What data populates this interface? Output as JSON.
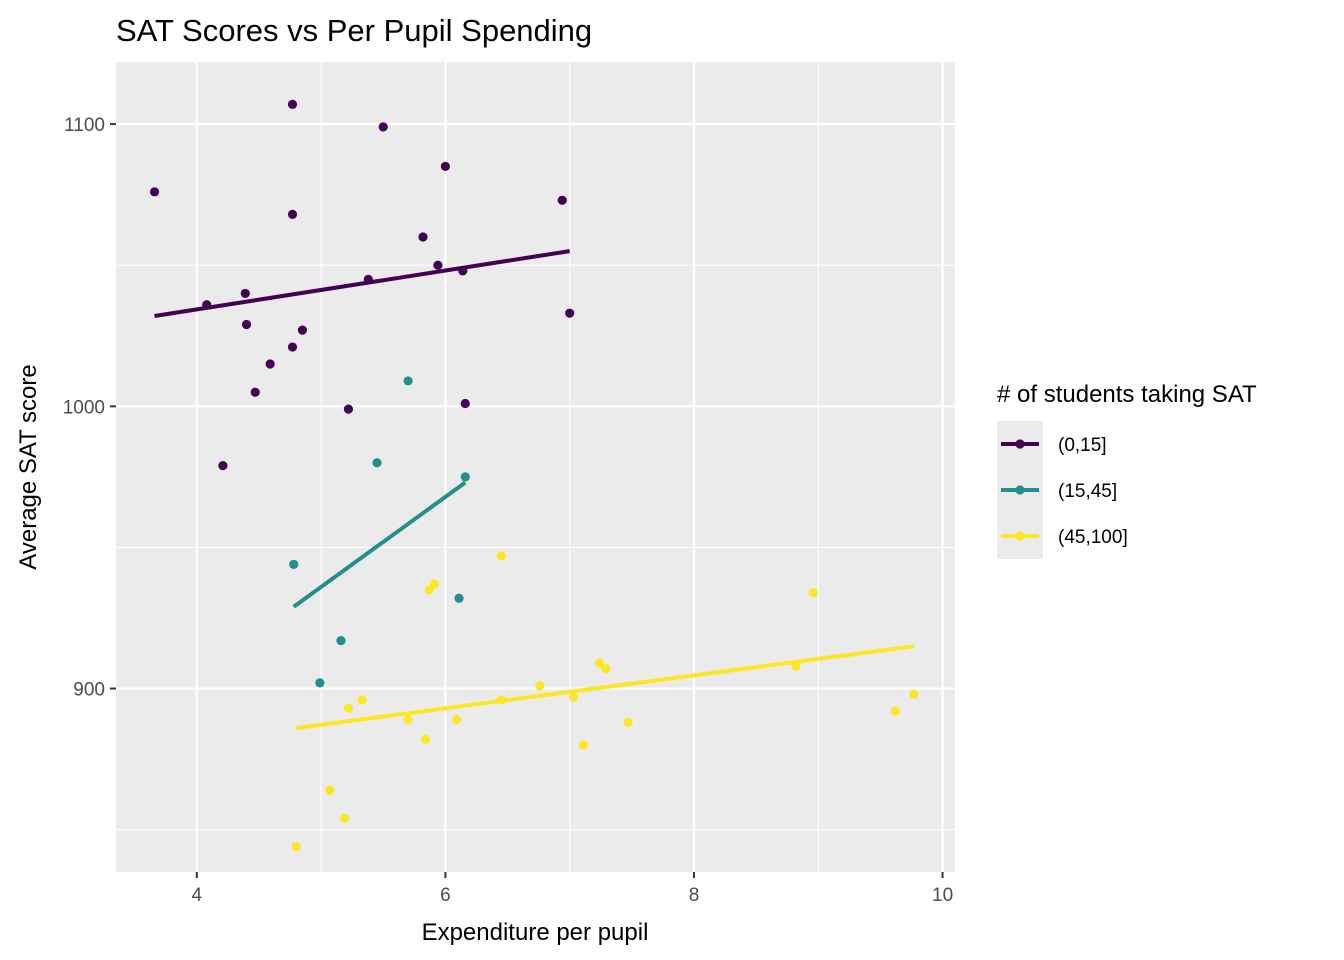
{
  "chart_data": {
    "type": "scatter",
    "title": "SAT Scores vs Per Pupil Spending",
    "xlabel": "Expenditure per pupil",
    "ylabel": "Average SAT score",
    "xlim": [
      3.35,
      10.1
    ],
    "ylim": [
      835,
      1122
    ],
    "xticks": [
      4,
      6,
      8,
      10
    ],
    "yticks": [
      900,
      1000,
      1100
    ],
    "grid": true,
    "legend": {
      "title": "# of students taking SAT",
      "position": "right"
    },
    "series": [
      {
        "name": "(0,15]",
        "color": "#440154",
        "points": [
          [
            3.66,
            1076
          ],
          [
            4.08,
            1036
          ],
          [
            4.21,
            979
          ],
          [
            4.39,
            1040
          ],
          [
            4.4,
            1029
          ],
          [
            4.47,
            1005
          ],
          [
            4.59,
            1015
          ],
          [
            4.77,
            1107
          ],
          [
            4.77,
            1068
          ],
          [
            4.77,
            1021
          ],
          [
            4.85,
            1027
          ],
          [
            5.22,
            999
          ],
          [
            5.38,
            1045
          ],
          [
            5.5,
            1099
          ],
          [
            5.82,
            1060
          ],
          [
            5.94,
            1050
          ],
          [
            6.0,
            1085
          ],
          [
            6.14,
            1048
          ],
          [
            6.16,
            1001
          ],
          [
            6.94,
            1073
          ],
          [
            7.0,
            1033
          ]
        ],
        "trend": [
          [
            3.66,
            1032
          ],
          [
            7.0,
            1055
          ]
        ]
      },
      {
        "name": "(15,45]",
        "color": "#21908C",
        "points": [
          [
            4.78,
            944
          ],
          [
            4.99,
            902
          ],
          [
            5.16,
            917
          ],
          [
            5.45,
            980
          ],
          [
            5.7,
            1009
          ],
          [
            6.11,
            932
          ],
          [
            6.16,
            975
          ]
        ],
        "trend": [
          [
            4.78,
            929
          ],
          [
            6.16,
            973
          ]
        ]
      },
      {
        "name": "(45,100]",
        "color": "#FDE725",
        "points": [
          [
            4.8,
            844
          ],
          [
            5.07,
            864
          ],
          [
            5.19,
            854
          ],
          [
            5.22,
            893
          ],
          [
            5.33,
            896
          ],
          [
            5.7,
            889
          ],
          [
            5.84,
            882
          ],
          [
            5.87,
            935
          ],
          [
            5.91,
            937
          ],
          [
            6.09,
            889
          ],
          [
            6.45,
            896
          ],
          [
            6.45,
            947
          ],
          [
            6.76,
            901
          ],
          [
            7.03,
            897
          ],
          [
            7.11,
            880
          ],
          [
            7.24,
            909
          ],
          [
            7.29,
            907
          ],
          [
            7.47,
            888
          ],
          [
            8.82,
            908
          ],
          [
            8.96,
            934
          ],
          [
            9.62,
            892
          ],
          [
            9.77,
            898
          ]
        ],
        "trend": [
          [
            4.8,
            886
          ],
          [
            9.77,
            915
          ]
        ]
      }
    ]
  }
}
